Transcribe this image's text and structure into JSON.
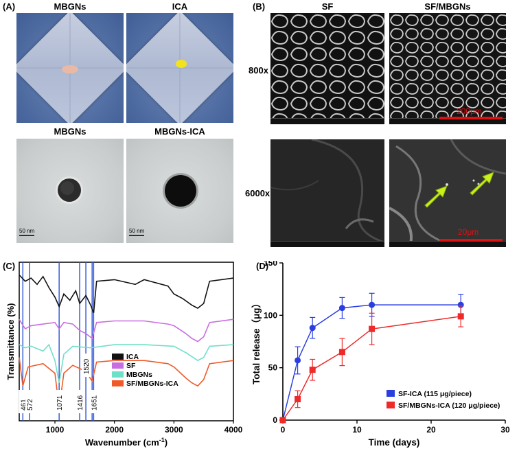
{
  "panelA": {
    "label": "(A)",
    "titles": [
      "MBGNs",
      "ICA",
      "MBGNs",
      "MBGNs-ICA"
    ],
    "scale": [
      "50 nm",
      "50 nm"
    ]
  },
  "panelB": {
    "label": "(B)",
    "titles": [
      "SF",
      "SF/MBGNs"
    ],
    "mags": [
      "800x",
      "6000x"
    ],
    "scale": [
      "200μm",
      "20μm"
    ]
  },
  "panelC": {
    "label": "(C)",
    "xlabel": "Wavenumber (cm",
    "xlabel_sup": "-1",
    "xlabel_end": ")",
    "ylabel": "Transmittance (%)",
    "xticks": [
      "1000",
      "2000",
      "3000",
      "4000"
    ],
    "legend": [
      {
        "name": "ICA",
        "color": "#111111"
      },
      {
        "name": "SF",
        "color": "#c86ee0"
      },
      {
        "name": "MBGNs",
        "color": "#6ee0c8"
      },
      {
        "name": "SF/MBGNs-ICA",
        "color": "#f05a28"
      }
    ],
    "peaks": [
      "461",
      "572",
      "1071",
      "1416",
      "1520",
      "1625",
      "1651"
    ]
  },
  "panelD": {
    "label": "(D)",
    "xlabel": "Time (days)",
    "ylabel": "Total release（μg）",
    "yticks": [
      "0",
      "50",
      "100",
      "150"
    ],
    "xticks": [
      "0",
      "10",
      "20",
      "30"
    ]
  },
  "chart_data": [
    {
      "type": "line",
      "xlabel": "Wavenumber (cm-1)",
      "ylabel": "Transmittance (%)",
      "xlim": [
        400,
        4000
      ],
      "xticks": [
        1000,
        2000,
        3000,
        4000
      ],
      "legend_placement": "center-bottom",
      "annotations": [
        461,
        572,
        1071,
        1416,
        1520,
        1625,
        1651
      ],
      "series": [
        {
          "name": "ICA",
          "color": "#111111",
          "x": [
            400,
            500,
            600,
            700,
            800,
            900,
            1000,
            1071,
            1150,
            1250,
            1350,
            1416,
            1520,
            1600,
            1651,
            1700,
            2000,
            2350,
            2500,
            2900,
            3000,
            3150,
            3300,
            3400,
            3500,
            3600,
            4000
          ],
          "y": [
            92,
            88,
            90,
            86,
            91,
            84,
            78,
            72,
            80,
            76,
            82,
            74,
            79,
            73,
            68,
            88,
            89,
            86,
            89,
            85,
            80,
            77,
            73,
            71,
            74,
            88,
            90
          ]
        },
        {
          "name": "SF",
          "color": "#c86ee0",
          "x": [
            400,
            500,
            600,
            800,
            1000,
            1071,
            1150,
            1300,
            1416,
            1520,
            1625,
            1700,
            2000,
            2500,
            2900,
            3000,
            3200,
            3300,
            3400,
            3500,
            3600,
            4000
          ],
          "y": [
            64,
            58,
            60,
            61,
            62,
            58,
            62,
            61,
            57,
            55,
            52,
            62,
            63,
            63,
            61,
            60,
            55,
            52,
            50,
            53,
            62,
            64
          ]
        },
        {
          "name": "MBGNs",
          "color": "#6ee0c8",
          "x": [
            400,
            500,
            600,
            800,
            900,
            1000,
            1071,
            1150,
            1300,
            1600,
            2000,
            2500,
            3000,
            3200,
            3400,
            3500,
            3600,
            4000
          ],
          "y": [
            48,
            46,
            47,
            44,
            48,
            38,
            24,
            42,
            47,
            46,
            48,
            48,
            47,
            43,
            38,
            40,
            47,
            48
          ]
        },
        {
          "name": "SF/MBGNs-ICA",
          "color": "#f05a28",
          "x": [
            400,
            461,
            550,
            800,
            1000,
            1071,
            1150,
            1300,
            1416,
            1520,
            1625,
            1700,
            2000,
            2500,
            2900,
            3000,
            3200,
            3300,
            3400,
            3500,
            3600,
            4000
          ],
          "y": [
            40,
            22,
            34,
            36,
            30,
            8,
            30,
            35,
            33,
            31,
            25,
            37,
            38,
            38,
            36,
            34,
            27,
            24,
            22,
            26,
            36,
            38
          ]
        }
      ]
    },
    {
      "type": "line",
      "xlabel": "Time (days)",
      "ylabel": "Total release（μg）",
      "xlim": [
        0,
        30
      ],
      "ylim": [
        0,
        150
      ],
      "legend_placement": "bottom-right",
      "series": [
        {
          "name": "SF-ICA (115 μg/piece)",
          "color": "#2b3fe0",
          "x": [
            0,
            2,
            4,
            8,
            12,
            24
          ],
          "y": [
            0,
            57,
            88,
            107,
            110,
            110
          ],
          "err": [
            0,
            13,
            10,
            10,
            11,
            10
          ]
        },
        {
          "name": "SF/MBGNs-ICA (120 μg/piece)",
          "color": "#ee2a2a",
          "x": [
            0,
            2,
            4,
            8,
            12,
            24
          ],
          "y": [
            0,
            20,
            48,
            65,
            87,
            99
          ],
          "err": [
            0,
            8,
            10,
            13,
            15,
            10
          ]
        }
      ]
    }
  ]
}
